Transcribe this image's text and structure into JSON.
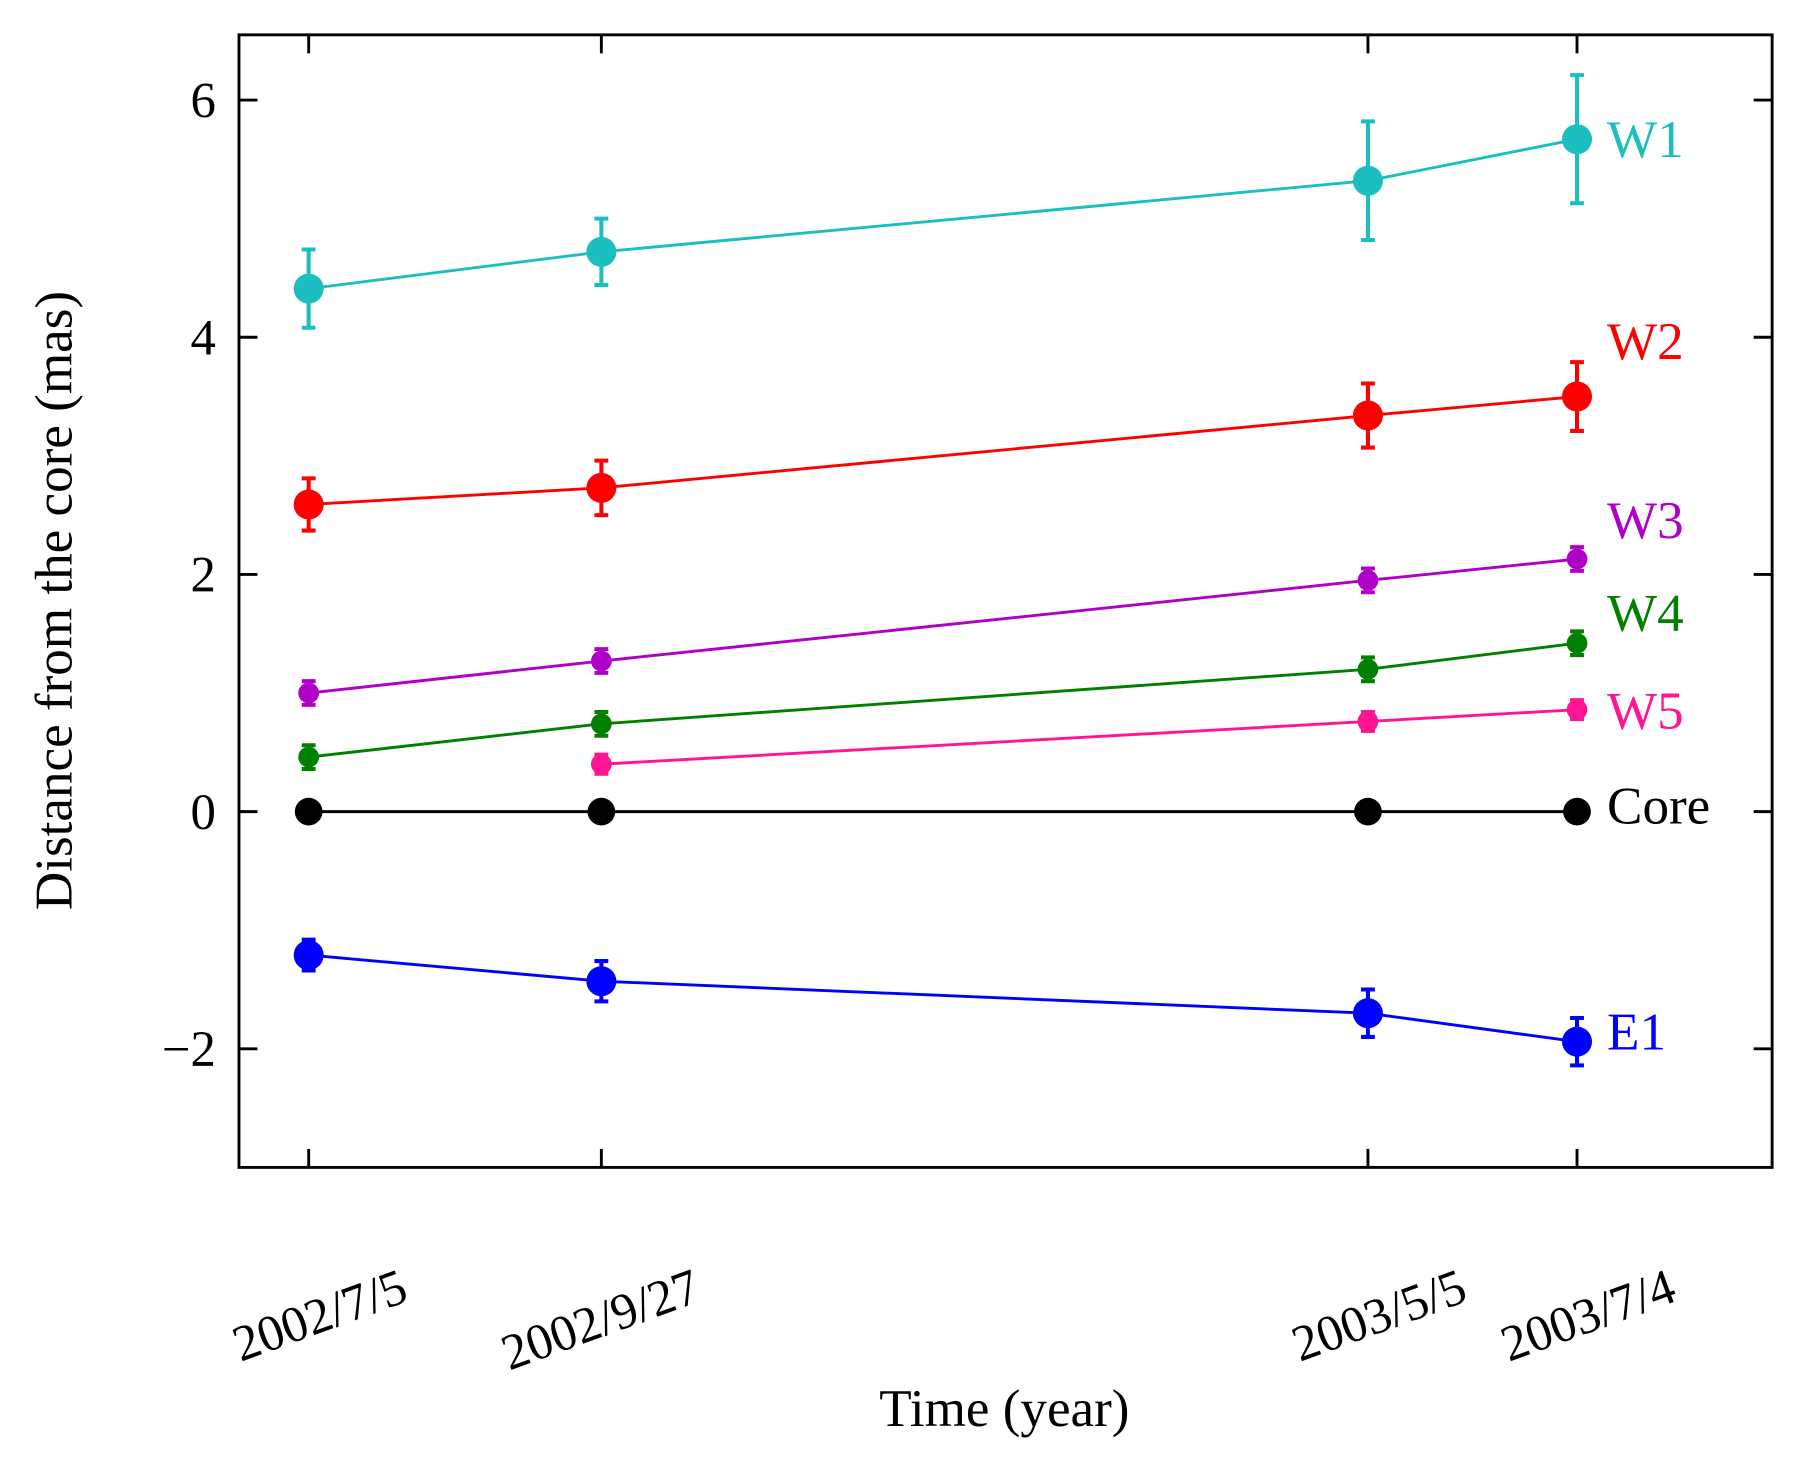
{
  "chart_data": {
    "type": "line",
    "x_label": "Time (year)",
    "y_label": "Distance from the core (mas)",
    "x": [
      "2002/7/5",
      "2002/9/27",
      "2003/5/5",
      "2003/7/4"
    ],
    "xlim": [
      "2002/6/15",
      "2003/8/29"
    ],
    "ylim": [
      -3,
      6.55
    ],
    "yticks": [
      {
        "value": -2,
        "label": "−2"
      },
      0,
      2,
      4,
      6
    ],
    "series": [
      {
        "name": "W1",
        "color": "#1bbfbf",
        "values": [
          4.41,
          4.72,
          5.32,
          5.67
        ],
        "errors": [
          0.33,
          0.28,
          0.5,
          0.54
        ]
      },
      {
        "name": "W2",
        "color": "#ff0000",
        "values": [
          2.59,
          2.73,
          3.34,
          3.5
        ],
        "errors": [
          0.22,
          0.23,
          0.27,
          0.29
        ]
      },
      {
        "name": "W3",
        "color": "#b000c8",
        "values": [
          1.0,
          1.27,
          1.95,
          2.13
        ],
        "errors": [
          0.1,
          0.1,
          0.1,
          0.1
        ]
      },
      {
        "name": "W4",
        "color": "#007f00",
        "values": [
          0.46,
          0.74,
          1.2,
          1.42
        ],
        "errors": [
          0.1,
          0.1,
          0.1,
          0.1
        ]
      },
      {
        "name": "W5",
        "color": "#ff1493",
        "values": [
          null,
          0.4,
          0.76,
          0.86
        ],
        "errors": [
          null,
          0.08,
          0.08,
          0.08
        ]
      },
      {
        "name": "Core",
        "color": "#000000",
        "values": [
          0,
          0,
          0,
          0
        ]
      },
      {
        "name": "E1",
        "color": "#0000ff",
        "values": [
          -1.21,
          -1.43,
          -1.7,
          -1.94
        ],
        "errors": [
          0.13,
          0.17,
          0.2,
          0.2
        ]
      }
    ]
  }
}
